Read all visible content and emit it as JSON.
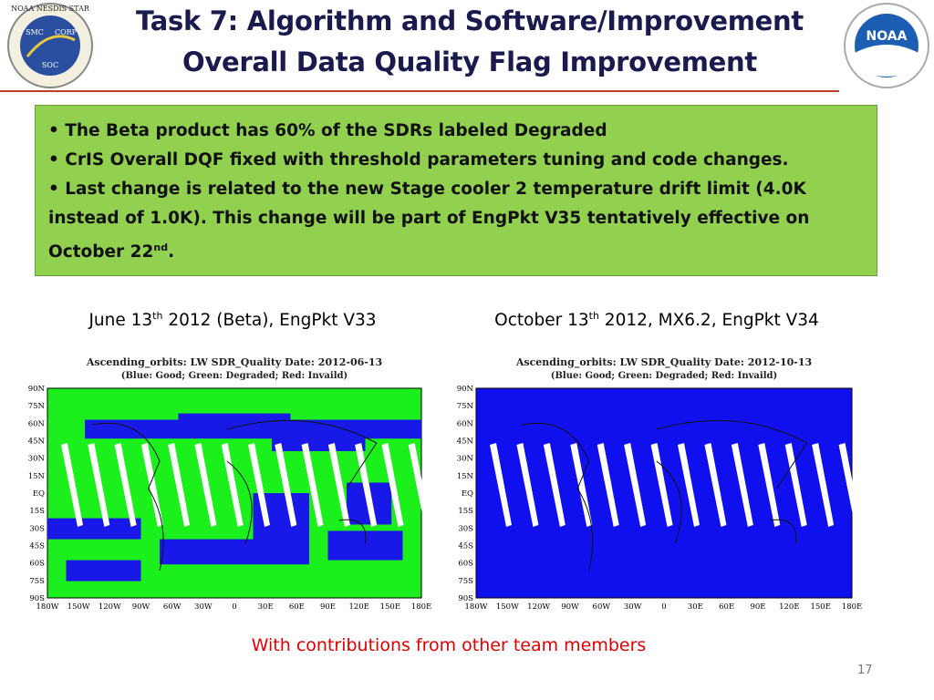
{
  "header": {
    "title_lines": [
      "Task 7: Algorithm and Software/Improvement",
      "Overall Data Quality Flag Improvement"
    ],
    "left_logo": [
      "NOAA NESDIS STAR",
      "SMC",
      "CORP",
      "SOC"
    ],
    "right_logo": "NOAA"
  },
  "bullets": [
    [
      "The Beta product has 60% of the SDRs labeled Degraded"
    ],
    [
      "CrIS Overall DQF fixed with threshold parameters tuning and code changes."
    ],
    [
      "Last change is related to the new Stage cooler 2 temperature drift limit (4.0K instead of 1.0K). This change will be part of EngPkt V35 tentatively effective on October  22",
      "nd",
      "."
    ]
  ],
  "panels": [
    {
      "caption": [
        "June 13",
        "th",
        " 2012 (Beta), EngPkt V33"
      ],
      "map_title": "Ascending_orbits: LW SDR_Quality Date: 2012-06-13",
      "map_legend": "(Blue: Good; Green: Degraded; Red: Invaild)"
    },
    {
      "caption": [
        "October 13",
        "th",
        " 2012, MX6.2, EngPkt V34"
      ],
      "map_title": "Ascending_orbits: LW SDR_Quality Date: 2012-10-13",
      "map_legend": "(Blue: Good; Green: Degraded; Red: Invaild)"
    }
  ],
  "lat_labels": [
    "90N",
    "75N",
    "60N",
    "45N",
    "30N",
    "15N",
    "EQ",
    "15S",
    "30S",
    "45S",
    "60S",
    "75S",
    "90S"
  ],
  "lon_labels": [
    "180W",
    "150W",
    "120W",
    "90W",
    "60W",
    "30W",
    "0",
    "30E",
    "60E",
    "90E",
    "120E",
    "150E",
    "180E"
  ],
  "footer": {
    "contributions": "With contributions from other team members",
    "page": "17"
  }
}
